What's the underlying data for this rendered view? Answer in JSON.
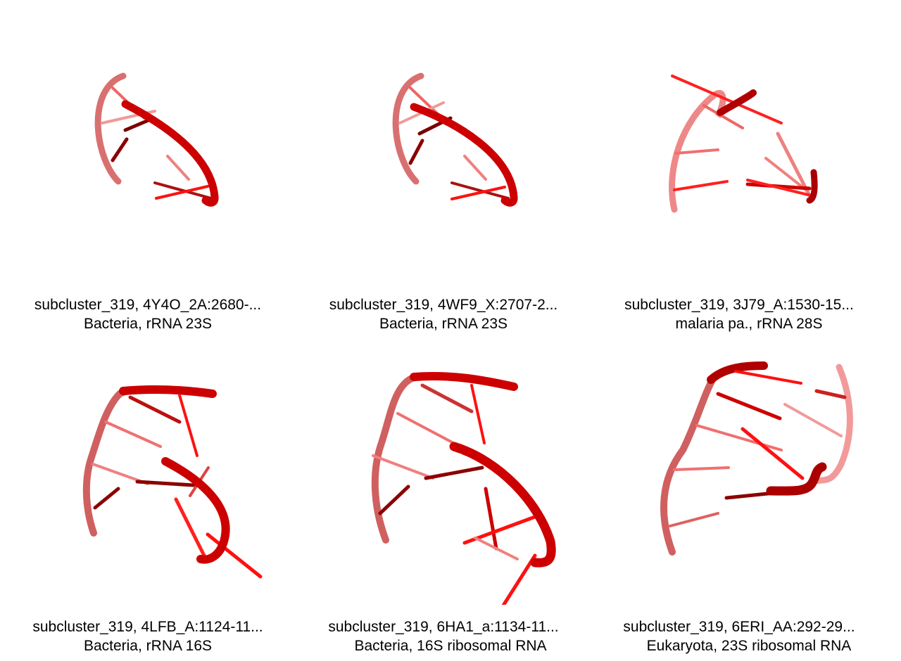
{
  "panels": [
    {
      "line1": "subcluster_319, 4Y4O_2A:2680-...",
      "line2": "Bacteria, rRNA 23S"
    },
    {
      "line1": "subcluster_319, 4WF9_X:2707-2...",
      "line2": "Bacteria, rRNA 23S"
    },
    {
      "line1": "subcluster_319, 3J79_A:1530-15...",
      "line2": "malaria pa., rRNA 28S"
    },
    {
      "line1": "subcluster_319, 4LFB_A:1124-11...",
      "line2": "Bacteria, rRNA 16S"
    },
    {
      "line1": "subcluster_319, 6HA1_a:1134-11...",
      "line2": "Bacteria, 16S ribosomal RNA"
    },
    {
      "line1": "subcluster_319, 6ERI_AA:292-29...",
      "line2": "Eukaryota, 23S ribosomal RNA"
    }
  ],
  "colors": {
    "backbone_light": "#f28a8a",
    "backbone_dark": "#c00000",
    "bright": "#ff0000",
    "dark": "#8b0000"
  }
}
